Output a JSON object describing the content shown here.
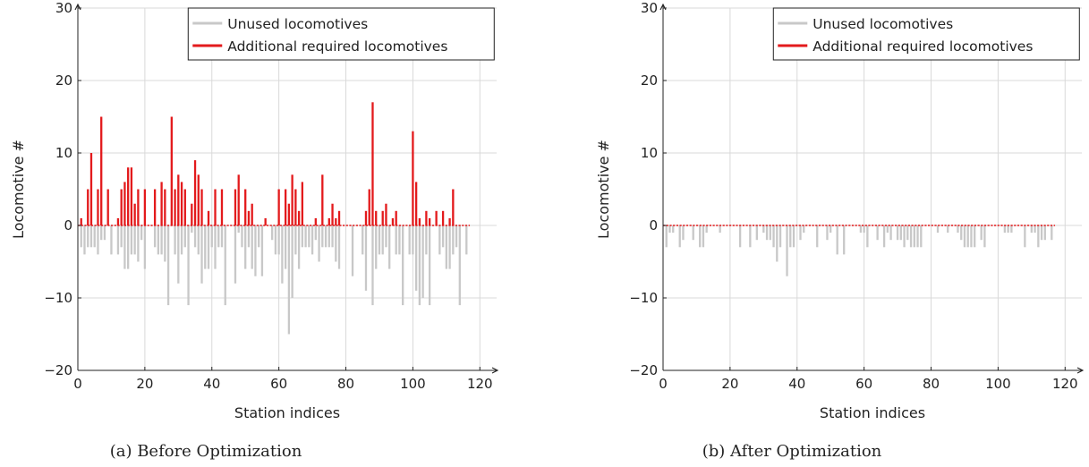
{
  "chart_data": [
    {
      "type": "bar",
      "caption": "(a) Before Optimization",
      "xlabel": "Station indices",
      "ylabel": "Locomotive #",
      "xlim": [
        0,
        125
      ],
      "ylim": [
        -20,
        30
      ],
      "xticks": [
        "0",
        "20",
        "40",
        "60",
        "80",
        "100",
        "120"
      ],
      "yticks": [
        "30",
        "20",
        "10",
        "0",
        "−10",
        "−20"
      ],
      "grid": true,
      "legend_position": "top-right",
      "series": [
        {
          "name": "Unused locomotives",
          "color": "#c8c8c8",
          "points": [
            [
              1,
              -3
            ],
            [
              2,
              -4
            ],
            [
              3,
              -3
            ],
            [
              4,
              -3
            ],
            [
              5,
              -3
            ],
            [
              6,
              -4
            ],
            [
              7,
              -2
            ],
            [
              8,
              -2
            ],
            [
              10,
              -4
            ],
            [
              12,
              -4
            ],
            [
              13,
              -3
            ],
            [
              14,
              -6
            ],
            [
              15,
              -6
            ],
            [
              16,
              -4
            ],
            [
              17,
              -4
            ],
            [
              18,
              -5
            ],
            [
              19,
              -2
            ],
            [
              20,
              -6
            ],
            [
              23,
              -3
            ],
            [
              24,
              -4
            ],
            [
              25,
              -4
            ],
            [
              26,
              -5
            ],
            [
              27,
              -11
            ],
            [
              29,
              -4
            ],
            [
              30,
              -8
            ],
            [
              31,
              -4
            ],
            [
              32,
              -3
            ],
            [
              33,
              -11
            ],
            [
              34,
              -1
            ],
            [
              35,
              -3
            ],
            [
              36,
              -4
            ],
            [
              37,
              -8
            ],
            [
              38,
              -6
            ],
            [
              39,
              -6
            ],
            [
              40,
              -3
            ],
            [
              41,
              -6
            ],
            [
              42,
              -3
            ],
            [
              43,
              -3
            ],
            [
              44,
              -11
            ],
            [
              47,
              -8
            ],
            [
              48,
              -1
            ],
            [
              49,
              -3
            ],
            [
              50,
              -6
            ],
            [
              51,
              -3
            ],
            [
              52,
              -6
            ],
            [
              53,
              -7
            ],
            [
              54,
              -3
            ],
            [
              55,
              -7
            ],
            [
              58,
              -2
            ],
            [
              59,
              -4
            ],
            [
              60,
              -4
            ],
            [
              61,
              -8
            ],
            [
              62,
              -6
            ],
            [
              63,
              -15
            ],
            [
              64,
              -10
            ],
            [
              65,
              -4
            ],
            [
              66,
              -6
            ],
            [
              67,
              -3
            ],
            [
              68,
              -3
            ],
            [
              69,
              -3
            ],
            [
              70,
              -4
            ],
            [
              71,
              -2
            ],
            [
              72,
              -5
            ],
            [
              73,
              -3
            ],
            [
              74,
              -3
            ],
            [
              75,
              -3
            ],
            [
              76,
              -3
            ],
            [
              77,
              -5
            ],
            [
              78,
              -6
            ],
            [
              82,
              -7
            ],
            [
              85,
              -4
            ],
            [
              86,
              -9
            ],
            [
              88,
              -11
            ],
            [
              89,
              -6
            ],
            [
              90,
              -4
            ],
            [
              91,
              -4
            ],
            [
              92,
              -3
            ],
            [
              93,
              -6
            ],
            [
              95,
              -4
            ],
            [
              96,
              -4
            ],
            [
              97,
              -11
            ],
            [
              99,
              -4
            ],
            [
              100,
              -4
            ],
            [
              101,
              -9
            ],
            [
              102,
              -11
            ],
            [
              103,
              -10
            ],
            [
              104,
              -4
            ],
            [
              105,
              -11
            ],
            [
              108,
              -4
            ],
            [
              109,
              -3
            ],
            [
              110,
              -6
            ],
            [
              111,
              -6
            ],
            [
              112,
              -4
            ],
            [
              113,
              -3
            ],
            [
              114,
              -11
            ],
            [
              116,
              -4
            ]
          ]
        },
        {
          "name": "Additional required locomotives",
          "color": "#e31a1c",
          "points": [
            [
              1,
              1
            ],
            [
              3,
              5
            ],
            [
              4,
              10
            ],
            [
              6,
              5
            ],
            [
              7,
              15
            ],
            [
              9,
              5
            ],
            [
              12,
              1
            ],
            [
              13,
              5
            ],
            [
              14,
              6
            ],
            [
              15,
              8
            ],
            [
              16,
              8
            ],
            [
              17,
              3
            ],
            [
              18,
              5
            ],
            [
              20,
              5
            ],
            [
              23,
              5
            ],
            [
              25,
              6
            ],
            [
              26,
              5
            ],
            [
              28,
              15
            ],
            [
              29,
              5
            ],
            [
              30,
              7
            ],
            [
              31,
              6
            ],
            [
              32,
              5
            ],
            [
              34,
              3
            ],
            [
              35,
              9
            ],
            [
              36,
              7
            ],
            [
              37,
              5
            ],
            [
              39,
              2
            ],
            [
              41,
              5
            ],
            [
              43,
              5
            ],
            [
              47,
              5
            ],
            [
              48,
              7
            ],
            [
              50,
              5
            ],
            [
              51,
              2
            ],
            [
              52,
              3
            ],
            [
              56,
              1
            ],
            [
              60,
              5
            ],
            [
              62,
              5
            ],
            [
              63,
              3
            ],
            [
              64,
              7
            ],
            [
              65,
              5
            ],
            [
              66,
              2
            ],
            [
              67,
              6
            ],
            [
              71,
              1
            ],
            [
              73,
              7
            ],
            [
              75,
              1
            ],
            [
              76,
              3
            ],
            [
              77,
              1
            ],
            [
              78,
              2
            ],
            [
              86,
              2
            ],
            [
              87,
              5
            ],
            [
              88,
              17
            ],
            [
              89,
              2
            ],
            [
              91,
              2
            ],
            [
              92,
              3
            ],
            [
              94,
              1
            ],
            [
              95,
              2
            ],
            [
              100,
              13
            ],
            [
              101,
              6
            ],
            [
              102,
              1
            ],
            [
              104,
              2
            ],
            [
              105,
              1
            ],
            [
              107,
              2
            ],
            [
              109,
              2
            ],
            [
              111,
              1
            ],
            [
              112,
              5
            ]
          ]
        }
      ]
    },
    {
      "type": "bar",
      "caption": "(b) After Optimization",
      "xlabel": "Station indices",
      "ylabel": "Locomotive #",
      "xlim": [
        0,
        125
      ],
      "ylim": [
        -20,
        30
      ],
      "xticks": [
        "0",
        "20",
        "40",
        "60",
        "80",
        "100",
        "120"
      ],
      "yticks": [
        "30",
        "20",
        "10",
        "0",
        "−10",
        "−20"
      ],
      "grid": true,
      "legend_position": "top-right",
      "series": [
        {
          "name": "Unused locomotives",
          "color": "#c8c8c8",
          "points": [
            [
              1,
              -3
            ],
            [
              2,
              -1
            ],
            [
              3,
              -1
            ],
            [
              5,
              -3
            ],
            [
              6,
              -2
            ],
            [
              9,
              -2
            ],
            [
              11,
              -3
            ],
            [
              12,
              -3
            ],
            [
              13,
              -1
            ],
            [
              17,
              -1
            ],
            [
              23,
              -3
            ],
            [
              26,
              -3
            ],
            [
              28,
              -2
            ],
            [
              30,
              -1
            ],
            [
              31,
              -2
            ],
            [
              32,
              -2
            ],
            [
              33,
              -3
            ],
            [
              34,
              -5
            ],
            [
              35,
              -3
            ],
            [
              37,
              -7
            ],
            [
              38,
              -3
            ],
            [
              39,
              -3
            ],
            [
              41,
              -2
            ],
            [
              42,
              -1
            ],
            [
              46,
              -3
            ],
            [
              49,
              -2
            ],
            [
              50,
              -1
            ],
            [
              52,
              -4
            ],
            [
              54,
              -4
            ],
            [
              59,
              -1
            ],
            [
              60,
              -1
            ],
            [
              61,
              -3
            ],
            [
              64,
              -2
            ],
            [
              66,
              -3
            ],
            [
              67,
              -1
            ],
            [
              68,
              -2
            ],
            [
              70,
              -2
            ],
            [
              71,
              -2
            ],
            [
              72,
              -3
            ],
            [
              73,
              -2
            ],
            [
              74,
              -3
            ],
            [
              75,
              -3
            ],
            [
              76,
              -3
            ],
            [
              77,
              -3
            ],
            [
              82,
              -1
            ],
            [
              85,
              -1
            ],
            [
              88,
              -1
            ],
            [
              89,
              -2
            ],
            [
              90,
              -3
            ],
            [
              91,
              -3
            ],
            [
              92,
              -3
            ],
            [
              93,
              -3
            ],
            [
              95,
              -2
            ],
            [
              96,
              -3
            ],
            [
              102,
              -1
            ],
            [
              103,
              -1
            ],
            [
              104,
              -1
            ],
            [
              108,
              -3
            ],
            [
              110,
              -1
            ],
            [
              111,
              -1
            ],
            [
              112,
              -3
            ],
            [
              113,
              -2
            ],
            [
              114,
              -2
            ],
            [
              116,
              -2
            ]
          ]
        },
        {
          "name": "Additional required locomotives",
          "color": "#e31a1c",
          "points": []
        }
      ]
    }
  ]
}
